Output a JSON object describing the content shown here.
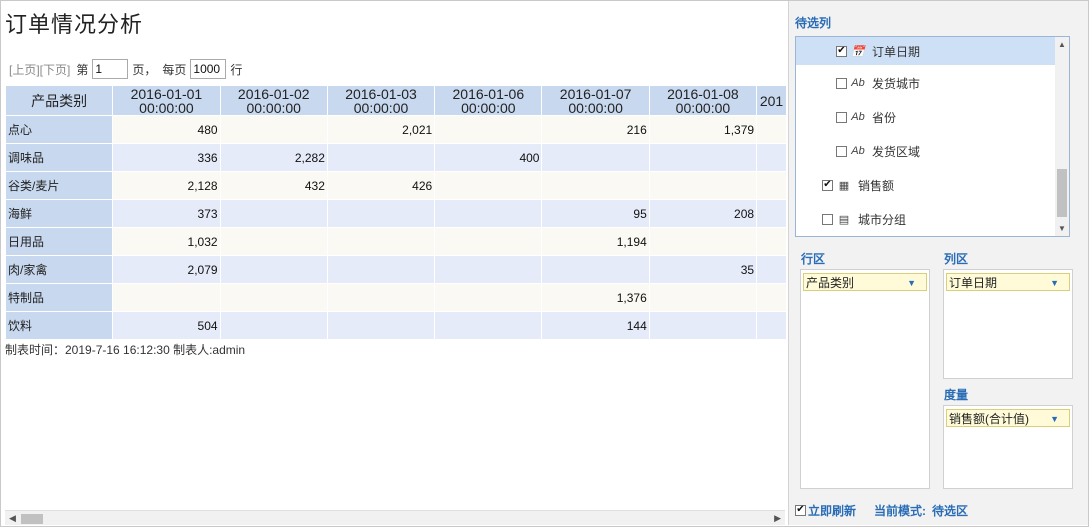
{
  "report": {
    "title": "订单情况分析",
    "pager": {
      "prev": "[上页]",
      "next": "[下页]",
      "page_prefix": "第",
      "page_value": "1",
      "page_suffix": "页，",
      "per_page_prefix": "每页",
      "per_page_value": "1000",
      "per_page_suffix": "行"
    },
    "table": {
      "corner": "产品类别",
      "columns": [
        "2016-01-01 00:00:00",
        "2016-01-02 00:00:00",
        "2016-01-03 00:00:00",
        "2016-01-06 00:00:00",
        "2016-01-07 00:00:00",
        "2016-01-08 00:00:00",
        "201"
      ],
      "rows": [
        {
          "label": "点心",
          "cells": [
            "480",
            "",
            "2,021",
            "",
            "216",
            "1,379",
            ""
          ]
        },
        {
          "label": "调味品",
          "cells": [
            "336",
            "2,282",
            "",
            "400",
            "",
            "",
            ""
          ]
        },
        {
          "label": "谷类/麦片",
          "cells": [
            "2,128",
            "432",
            "426",
            "",
            "",
            "",
            ""
          ]
        },
        {
          "label": "海鲜",
          "cells": [
            "373",
            "",
            "",
            "",
            "95",
            "208",
            ""
          ]
        },
        {
          "label": "日用品",
          "cells": [
            "1,032",
            "",
            "",
            "",
            "1,194",
            "",
            ""
          ]
        },
        {
          "label": "肉/家禽",
          "cells": [
            "2,079",
            "",
            "",
            "",
            "",
            "35",
            ""
          ]
        },
        {
          "label": "特制品",
          "cells": [
            "",
            "",
            "",
            "",
            "1,376",
            "",
            ""
          ]
        },
        {
          "label": "饮料",
          "cells": [
            "504",
            "",
            "",
            "",
            "144",
            "",
            ""
          ]
        }
      ]
    },
    "footer_note": "制表时间：2019-7-16 16:12:30 制表人:admin"
  },
  "panel": {
    "candidates_title": "待选列",
    "fields": [
      {
        "label": "订单日期",
        "checked": true,
        "icon": "calendar-icon",
        "glyph": "📅",
        "selected": true
      },
      {
        "label": "发货城市",
        "checked": false,
        "icon": "text-field-icon",
        "glyph": "Ab",
        "selected": false
      },
      {
        "label": "省份",
        "checked": false,
        "icon": "text-field-icon",
        "glyph": "Ab",
        "selected": false
      },
      {
        "label": "发货区域",
        "checked": false,
        "icon": "text-field-icon",
        "glyph": "Ab",
        "selected": false
      },
      {
        "label": "销售额",
        "checked": true,
        "icon": "calculator-icon",
        "glyph": "▦",
        "selected": false
      },
      {
        "label": "城市分组",
        "checked": false,
        "icon": "group-field-icon",
        "glyph": "▤",
        "selected": false
      }
    ],
    "row_zone": {
      "title": "行区",
      "chip": "产品类别"
    },
    "col_zone": {
      "title": "列区",
      "chip": "订单日期"
    },
    "measure_zone": {
      "title": "度量",
      "chip": "销售额(合计值)"
    },
    "refresh_label": "立即刷新",
    "refresh_checked": true,
    "mode_label": "当前模式:",
    "mode_value": "待选区"
  },
  "colors": {
    "header_bg": "#c8d9ef",
    "row_odd": "#faf9f3",
    "row_even": "#e6ebfa",
    "accent": "#2a6db6",
    "chip_bg": "#fffbd8"
  }
}
